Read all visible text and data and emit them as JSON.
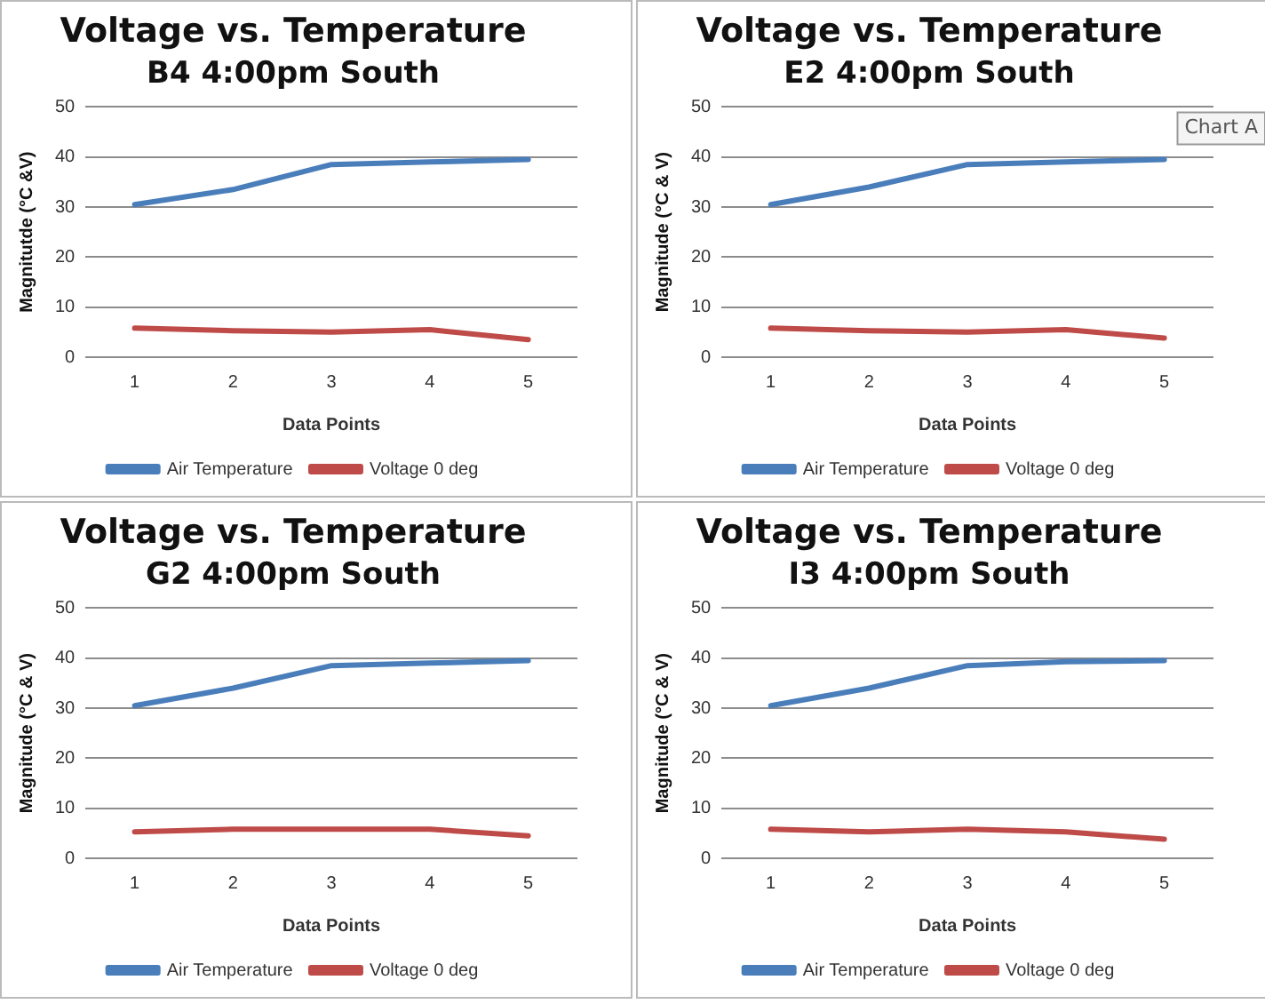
{
  "chart_data": [
    {
      "type": "line",
      "title": "Voltage vs. Temperature",
      "subtitle": "B4 4:00pm South",
      "xlabel": "Data Points",
      "ylabel": "Magnitutde (°C &V)",
      "categories": [
        "1",
        "2",
        "3",
        "4",
        "5"
      ],
      "ylim": [
        0,
        50
      ],
      "yticks": [
        0,
        10,
        20,
        30,
        40,
        50
      ],
      "grid": "y",
      "legend": "bottom",
      "marker": "none",
      "series": [
        {
          "name": "Air Temperature",
          "color": "#4a7ebb",
          "values": [
            30.5,
            33.5,
            38.5,
            39,
            39.5
          ]
        },
        {
          "name": "Voltage 0 deg",
          "color": "#be4b48",
          "values": [
            5.8,
            5.3,
            5,
            5.5,
            3.5
          ]
        }
      ]
    },
    {
      "type": "line",
      "title": "Voltage vs. Temperature",
      "subtitle": "E2 4:00pm South",
      "xlabel": "Data Points",
      "ylabel": "Magnitude (°C & V)",
      "categories": [
        "1",
        "2",
        "3",
        "4",
        "5"
      ],
      "ylim": [
        0,
        50
      ],
      "yticks": [
        0,
        10,
        20,
        30,
        40,
        50
      ],
      "grid": "y",
      "legend": "bottom",
      "marker": "none",
      "annotations": [
        "Chart A"
      ],
      "series": [
        {
          "name": "Air Temperature",
          "color": "#4a7ebb",
          "values": [
            30.5,
            34,
            38.5,
            39,
            39.5
          ]
        },
        {
          "name": "Voltage 0 deg",
          "color": "#be4b48",
          "values": [
            5.8,
            5.3,
            5,
            5.5,
            3.8
          ]
        }
      ]
    },
    {
      "type": "line",
      "title": "Voltage vs. Temperature",
      "subtitle": "G2 4:00pm South",
      "xlabel": "Data Points",
      "ylabel": "Magnitude (°C & V)",
      "categories": [
        "1",
        "2",
        "3",
        "4",
        "5"
      ],
      "ylim": [
        0,
        50
      ],
      "yticks": [
        0,
        10,
        20,
        30,
        40,
        50
      ],
      "grid": "y",
      "legend": "bottom",
      "marker": "none",
      "series": [
        {
          "name": "Air Temperature",
          "color": "#4a7ebb",
          "values": [
            30.5,
            34,
            38.5,
            39,
            39.5
          ]
        },
        {
          "name": "Voltage 0 deg",
          "color": "#be4b48",
          "values": [
            5.3,
            5.8,
            5.8,
            5.8,
            4.5
          ]
        }
      ]
    },
    {
      "type": "line",
      "title": "Voltage vs. Temperature",
      "subtitle": "I3 4:00pm South",
      "xlabel": "Data Points",
      "ylabel": "Magnitude (°C & V)",
      "categories": [
        "1",
        "2",
        "3",
        "4",
        "5"
      ],
      "ylim": [
        0,
        50
      ],
      "yticks": [
        0,
        10,
        20,
        30,
        40,
        50
      ],
      "grid": "y",
      "legend": "bottom",
      "marker": "none",
      "series": [
        {
          "name": "Air Temperature",
          "color": "#4a7ebb",
          "values": [
            30.5,
            34,
            38.5,
            39.3,
            39.5
          ]
        },
        {
          "name": "Voltage 0 deg",
          "color": "#be4b48",
          "values": [
            5.8,
            5.3,
            5.8,
            5.3,
            3.8
          ]
        }
      ]
    }
  ]
}
